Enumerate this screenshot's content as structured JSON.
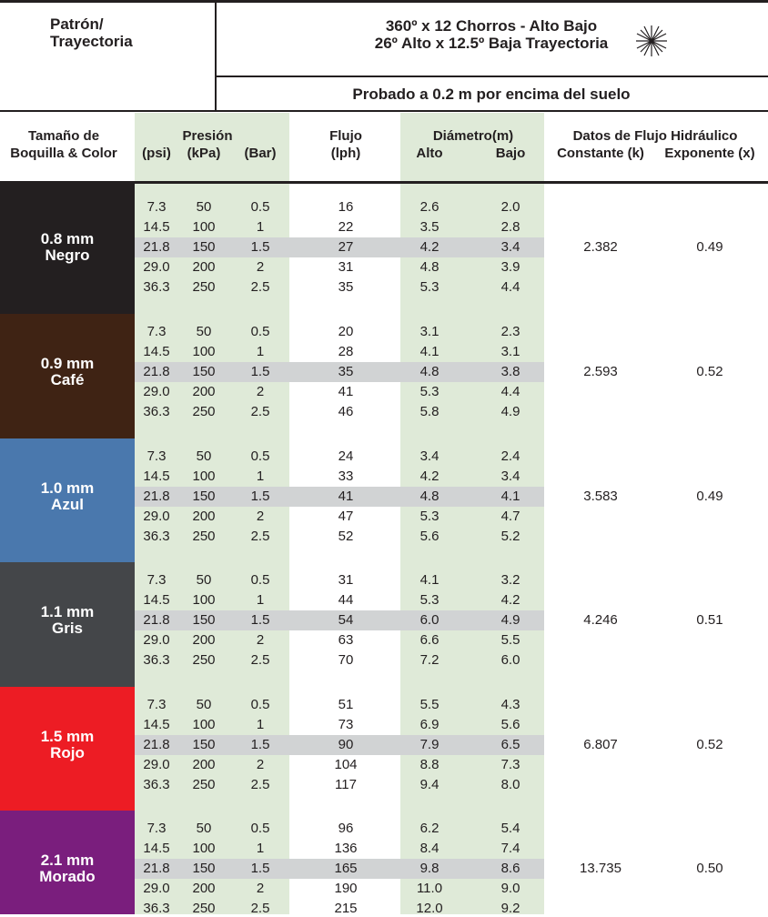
{
  "header": {
    "pattern_label": [
      "Patrón/",
      "Trayectoria"
    ],
    "title": [
      "360º x 12 Chorros - Alto Bajo",
      "26º Alto x 12.5º Baja Trayectoria"
    ],
    "subtitle": "Probado a 0.2 m por encima del suelo"
  },
  "table": {
    "columns": {
      "nozzle": [
        "Tamaño de",
        "Boquilla & Color"
      ],
      "pressure": "Presión",
      "psi": "(psi)",
      "kpa": "(kPa)",
      "bar": "(Bar)",
      "flow": [
        "Flujo",
        "(lph)"
      ],
      "diameter": "Diámetro(m)",
      "high": "Alto",
      "low": "Bajo",
      "hydraulic": "Datos de Flujo Hidráulico",
      "k": "Constante (k)",
      "x": "Exponente (x)"
    },
    "groups": [
      {
        "size": "0.8 mm",
        "color_name": "Negro",
        "color": "#231f20",
        "k": "2.382",
        "x": "0.49",
        "rows": [
          [
            "7.3",
            "50",
            "0.5",
            "16",
            "2.6",
            "2.0"
          ],
          [
            "14.5",
            "100",
            "1",
            "22",
            "3.5",
            "2.8"
          ],
          [
            "21.8",
            "150",
            "1.5",
            "27",
            "4.2",
            "3.4"
          ],
          [
            "29.0",
            "200",
            "2",
            "31",
            "4.8",
            "3.9"
          ],
          [
            "36.3",
            "250",
            "2.5",
            "35",
            "5.3",
            "4.4"
          ]
        ]
      },
      {
        "size": "0.9 mm",
        "color_name": "Café",
        "color": "#3f2314",
        "k": "2.593",
        "x": "0.52",
        "rows": [
          [
            "7.3",
            "50",
            "0.5",
            "20",
            "3.1",
            "2.3"
          ],
          [
            "14.5",
            "100",
            "1",
            "28",
            "4.1",
            "3.1"
          ],
          [
            "21.8",
            "150",
            "1.5",
            "35",
            "4.8",
            "3.8"
          ],
          [
            "29.0",
            "200",
            "2",
            "41",
            "5.3",
            "4.4"
          ],
          [
            "36.3",
            "250",
            "2.5",
            "46",
            "5.8",
            "4.9"
          ]
        ]
      },
      {
        "size": "1.0 mm",
        "color_name": "Azul",
        "color": "#4a78ad",
        "k": "3.583",
        "x": "0.49",
        "rows": [
          [
            "7.3",
            "50",
            "0.5",
            "24",
            "3.4",
            "2.4"
          ],
          [
            "14.5",
            "100",
            "1",
            "33",
            "4.2",
            "3.4"
          ],
          [
            "21.8",
            "150",
            "1.5",
            "41",
            "4.8",
            "4.1"
          ],
          [
            "29.0",
            "200",
            "2",
            "47",
            "5.3",
            "4.7"
          ],
          [
            "36.3",
            "250",
            "2.5",
            "52",
            "5.6",
            "5.2"
          ]
        ]
      },
      {
        "size": "1.1 mm",
        "color_name": "Gris",
        "color": "#444649",
        "k": "4.246",
        "x": "0.51",
        "rows": [
          [
            "7.3",
            "50",
            "0.5",
            "31",
            "4.1",
            "3.2"
          ],
          [
            "14.5",
            "100",
            "1",
            "44",
            "5.3",
            "4.2"
          ],
          [
            "21.8",
            "150",
            "1.5",
            "54",
            "6.0",
            "4.9"
          ],
          [
            "29.0",
            "200",
            "2",
            "63",
            "6.6",
            "5.5"
          ],
          [
            "36.3",
            "250",
            "2.5",
            "70",
            "7.2",
            "6.0"
          ]
        ]
      },
      {
        "size": "1.5 mm",
        "color_name": "Rojo",
        "color": "#ed1c24",
        "k": "6.807",
        "x": "0.52",
        "rows": [
          [
            "7.3",
            "50",
            "0.5",
            "51",
            "5.5",
            "4.3"
          ],
          [
            "14.5",
            "100",
            "1",
            "73",
            "6.9",
            "5.6"
          ],
          [
            "21.8",
            "150",
            "1.5",
            "90",
            "7.9",
            "6.5"
          ],
          [
            "29.0",
            "200",
            "2",
            "104",
            "8.8",
            "7.3"
          ],
          [
            "36.3",
            "250",
            "2.5",
            "117",
            "9.4",
            "8.0"
          ]
        ]
      },
      {
        "size": "2.1 mm",
        "color_name": "Morado",
        "color": "#7a1e7d",
        "k": "13.735",
        "x": "0.50",
        "rows": [
          [
            "7.3",
            "50",
            "0.5",
            "96",
            "6.2",
            "5.4"
          ],
          [
            "14.5",
            "100",
            "1",
            "136",
            "8.4",
            "7.4"
          ],
          [
            "21.8",
            "150",
            "1.5",
            "165",
            "9.8",
            "8.6"
          ],
          [
            "29.0",
            "200",
            "2",
            "190",
            "11.0",
            "9.0"
          ],
          [
            "36.3",
            "250",
            "2.5",
            "215",
            "12.0",
            "9.2"
          ]
        ]
      }
    ]
  }
}
